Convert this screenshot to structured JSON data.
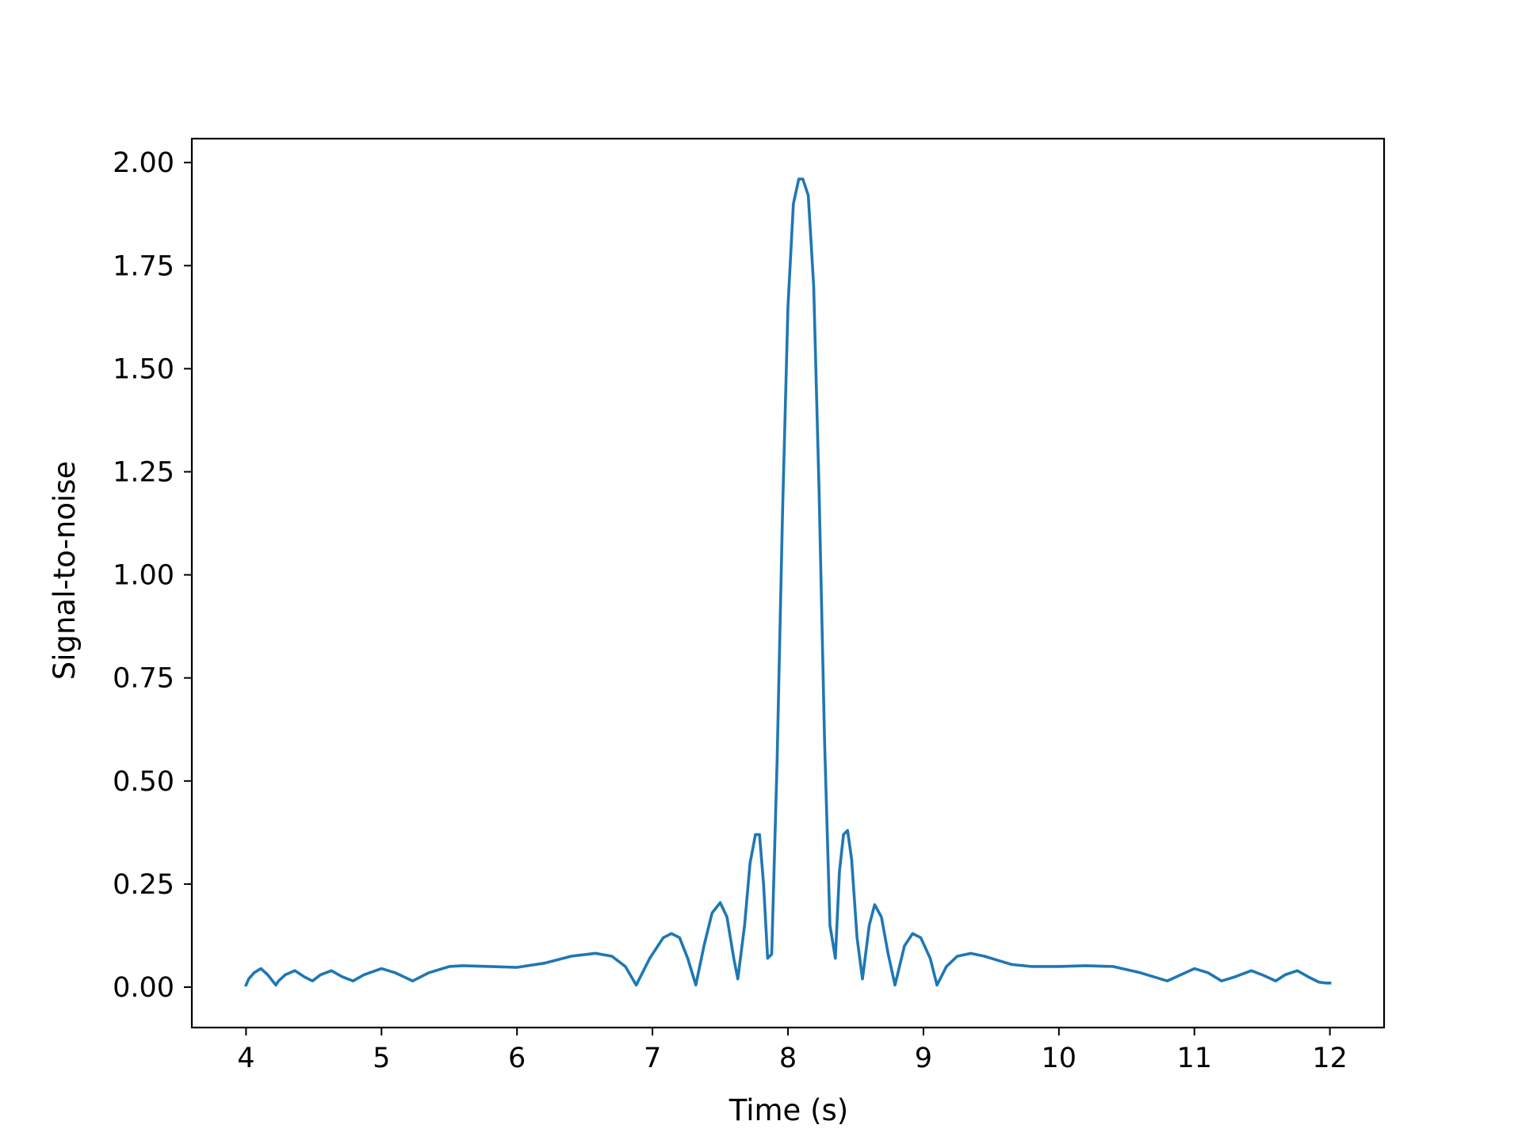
{
  "chart_data": {
    "type": "line",
    "title": "",
    "xlabel": "Time (s)",
    "ylabel": "Signal-to-noise",
    "xlim": [
      3.6,
      12.4
    ],
    "ylim": [
      -0.098,
      2.058
    ],
    "xticks": [
      4,
      5,
      6,
      7,
      8,
      9,
      10,
      11,
      12
    ],
    "xtick_labels": [
      "4",
      "5",
      "6",
      "7",
      "8",
      "9",
      "10",
      "11",
      "12"
    ],
    "yticks": [
      0.0,
      0.25,
      0.5,
      0.75,
      1.0,
      1.25,
      1.5,
      1.75,
      2.0
    ],
    "ytick_labels": [
      "0.00",
      "0.25",
      "0.50",
      "0.75",
      "1.00",
      "1.25",
      "1.50",
      "1.75",
      "2.00"
    ],
    "grid": false,
    "legend": "none",
    "series": [
      {
        "color": "#1f77b4",
        "x": [
          4.0,
          4.02,
          4.06,
          4.11,
          4.16,
          4.22,
          4.24,
          4.29,
          4.36,
          4.43,
          4.49,
          4.55,
          4.63,
          4.71,
          4.79,
          4.87,
          5.0,
          5.1,
          5.23,
          5.35,
          5.5,
          5.6,
          5.8,
          6.0,
          6.2,
          6.4,
          6.58,
          6.7,
          6.8,
          6.88,
          6.98,
          7.08,
          7.14,
          7.2,
          7.26,
          7.32,
          7.38,
          7.44,
          7.5,
          7.55,
          7.6,
          7.63,
          7.68,
          7.72,
          7.76,
          7.79,
          7.82,
          7.85,
          7.88,
          7.92,
          7.96,
          8.0,
          8.04,
          8.08,
          8.11,
          8.15,
          8.19,
          8.23,
          8.27,
          8.31,
          8.35,
          8.38,
          8.41,
          8.44,
          8.47,
          8.51,
          8.55,
          8.6,
          8.64,
          8.69,
          8.74,
          8.79,
          8.86,
          8.92,
          8.98,
          9.05,
          9.1,
          9.17,
          9.25,
          9.35,
          9.45,
          9.55,
          9.65,
          9.8,
          10.0,
          10.2,
          10.4,
          10.6,
          10.8,
          10.9,
          11.0,
          11.1,
          11.2,
          11.3,
          11.42,
          11.5,
          11.6,
          11.67,
          11.76,
          11.84,
          11.92,
          11.97,
          12.0
        ],
        "values": [
          0.005,
          0.02,
          0.035,
          0.045,
          0.03,
          0.005,
          0.015,
          0.03,
          0.04,
          0.025,
          0.015,
          0.03,
          0.04,
          0.025,
          0.015,
          0.03,
          0.045,
          0.035,
          0.015,
          0.035,
          0.05,
          0.052,
          0.05,
          0.048,
          0.058,
          0.075,
          0.082,
          0.075,
          0.05,
          0.005,
          0.07,
          0.12,
          0.13,
          0.12,
          0.07,
          0.005,
          0.1,
          0.18,
          0.205,
          0.17,
          0.07,
          0.02,
          0.15,
          0.3,
          0.37,
          0.37,
          0.25,
          0.07,
          0.08,
          0.55,
          1.15,
          1.65,
          1.9,
          1.96,
          1.96,
          1.92,
          1.7,
          1.2,
          0.6,
          0.15,
          0.07,
          0.28,
          0.37,
          0.38,
          0.31,
          0.12,
          0.02,
          0.15,
          0.2,
          0.17,
          0.08,
          0.005,
          0.1,
          0.13,
          0.12,
          0.07,
          0.005,
          0.05,
          0.075,
          0.082,
          0.075,
          0.065,
          0.055,
          0.05,
          0.05,
          0.052,
          0.05,
          0.035,
          0.015,
          0.03,
          0.045,
          0.035,
          0.015,
          0.025,
          0.04,
          0.03,
          0.015,
          0.03,
          0.04,
          0.025,
          0.012,
          0.01,
          0.01
        ]
      }
    ]
  }
}
